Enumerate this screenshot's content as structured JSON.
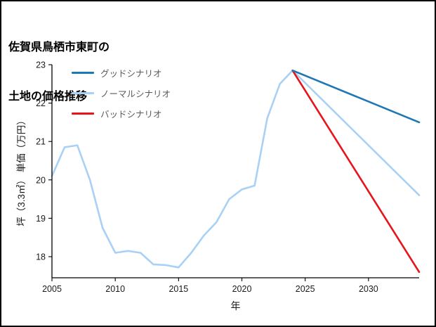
{
  "title": {
    "line1": "佐賀県鳥栖市東町の",
    "line2": "土地の価格推移"
  },
  "chart_data": {
    "type": "line",
    "title": "佐賀県鳥栖市東町の土地の価格推移",
    "xlabel": "年",
    "ylabel": "坪（3.3㎡） 単価（万円）",
    "xlim": [
      2005,
      2034
    ],
    "ylim": [
      17.45,
      23
    ],
    "xticks": [
      2005,
      2010,
      2015,
      2020,
      2025,
      2030
    ],
    "yticks": [
      18,
      19,
      20,
      21,
      22,
      23
    ],
    "grid": false,
    "legend_position": "upper-left",
    "legend": [
      {
        "label": "グッドシナリオ",
        "color": "#1f77b4"
      },
      {
        "label": "ノーマルシナリオ",
        "color": "#a9d1f5"
      },
      {
        "label": "バッドシナリオ",
        "color": "#e8141c"
      }
    ],
    "series": [
      {
        "name": "history",
        "color": "#a9d1f5",
        "x": [
          2005,
          2006,
          2007,
          2008,
          2009,
          2010,
          2011,
          2012,
          2013,
          2014,
          2015,
          2016,
          2017,
          2018,
          2019,
          2020,
          2021,
          2022,
          2023,
          2024
        ],
        "values": [
          20.1,
          20.85,
          20.9,
          20.0,
          18.75,
          18.1,
          18.15,
          18.1,
          17.8,
          17.78,
          17.72,
          18.1,
          18.55,
          18.9,
          19.5,
          19.75,
          19.85,
          21.6,
          22.5,
          22.85
        ]
      },
      {
        "name": "ノーマルシナリオ",
        "color": "#a9d1f5",
        "x": [
          2024,
          2034
        ],
        "values": [
          22.85,
          19.6
        ]
      },
      {
        "name": "バッドシナリオ",
        "color": "#e8141c",
        "x": [
          2024,
          2034
        ],
        "values": [
          22.85,
          17.6
        ]
      },
      {
        "name": "グッドシナリオ",
        "color": "#1f77b4",
        "x": [
          2024,
          2034
        ],
        "values": [
          22.85,
          21.5
        ]
      }
    ]
  }
}
